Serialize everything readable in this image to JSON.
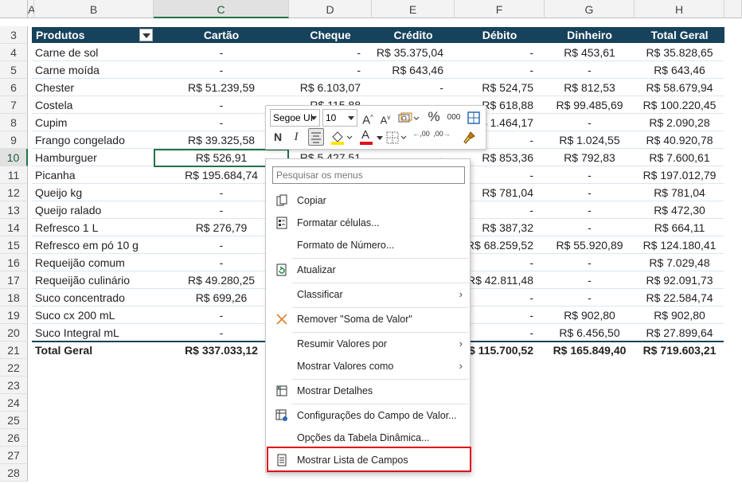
{
  "columns": [
    "A",
    "B",
    "C",
    "D",
    "E",
    "F",
    "G",
    "H"
  ],
  "row_numbers": [
    "3",
    "4",
    "5",
    "6",
    "7",
    "8",
    "9",
    "10",
    "11",
    "12",
    "13",
    "14",
    "15",
    "16",
    "17",
    "18",
    "19",
    "20",
    "21",
    "22",
    "23",
    "24",
    "25",
    "26",
    "27",
    "28"
  ],
  "pivot": {
    "headers": [
      "Produtos",
      "Cartão",
      "Cheque",
      "Crédito",
      "Débito",
      "Dinheiro",
      "Total Geral"
    ],
    "rows": [
      [
        "Carne de sol",
        "-",
        "-",
        "R$ 35.375,04",
        "-",
        "R$ 453,61",
        "R$ 35.828,65"
      ],
      [
        "Carne moída",
        "-",
        "-",
        "R$ 643,46",
        "-",
        "-",
        "R$ 643,46"
      ],
      [
        "Chester",
        "R$ 51.239,59",
        "R$ 6.103,07",
        "-",
        "R$ 524,75",
        "R$ 812,53",
        "R$ 58.679,94"
      ],
      [
        "Costela",
        "-",
        "R$ 115,88",
        "",
        "R$ 618,88",
        "R$ 99.485,69",
        "R$ 100.220,45"
      ],
      [
        "Cupim",
        "-",
        "",
        "",
        "R$ 1.464,17",
        "-",
        "R$ 2.090,28"
      ],
      [
        "Frango congelado",
        "R$ 39.325,58",
        "",
        "",
        "-",
        "R$ 1.024,55",
        "R$ 40.920,78"
      ],
      [
        "Hamburguer",
        "R$ 526,91",
        "R$ 5.427,51",
        "-",
        "R$ 853,36",
        "R$ 792,83",
        "R$ 7.600,61"
      ],
      [
        "Picanha",
        "R$ 195.684,74",
        "",
        "",
        "-",
        "-",
        "R$ 197.012,79"
      ],
      [
        "Queijo kg",
        "-",
        "",
        "",
        "R$ 781,04",
        "-",
        "R$ 781,04"
      ],
      [
        "Queijo ralado",
        "-",
        "",
        "",
        "-",
        "-",
        "R$ 472,30"
      ],
      [
        "Refresco 1 L",
        "R$ 276,79",
        "",
        "",
        "R$ 387,32",
        "-",
        "R$ 664,11"
      ],
      [
        "Refresco em pó 10 g",
        "-",
        "",
        "",
        "R$ 68.259,52",
        "R$ 55.920,89",
        "R$ 124.180,41"
      ],
      [
        "Requeijão comum",
        "-",
        "",
        "",
        "-",
        "-",
        "R$ 7.029,48"
      ],
      [
        "Requeijão culinário",
        "R$ 49.280,25",
        "",
        "",
        "R$ 42.811,48",
        "-",
        "R$ 92.091,73"
      ],
      [
        "Suco concentrado",
        "R$ 699,26",
        "",
        "",
        "-",
        "-",
        "R$ 22.584,74"
      ],
      [
        "Suco cx 200 mL",
        "-",
        "",
        "",
        "-",
        "R$ 902,80",
        "R$ 902,80"
      ],
      [
        "Suco Integral mL",
        "-",
        "",
        "",
        "-",
        "R$ 6.456,50",
        "R$ 27.899,64"
      ]
    ],
    "total": [
      "Total Geral",
      "R$ 337.033,12",
      "",
      "",
      "R$ 115.700,52",
      "R$ 165.849,40",
      "R$ 719.603,21"
    ]
  },
  "mini_toolbar": {
    "font_name": "Segoe UI",
    "font_size": "10",
    "grow_font": "A",
    "shrink_font": "A",
    "percent": "%",
    "thousands": "000",
    "bold": "N",
    "italic": "I",
    "font_color_letter": "A",
    "dec_increase": ",00",
    "dec_decrease": ",00"
  },
  "context_menu": {
    "search_placeholder": "Pesquisar os menus",
    "items": [
      {
        "label": "Copiar",
        "icon": "copy-icon"
      },
      {
        "label": "Formatar células...",
        "icon": "format-cells-icon"
      },
      {
        "label": "Formato de Número...",
        "icon": ""
      },
      {
        "label": "Atualizar",
        "icon": "refresh-icon"
      },
      {
        "label": "Classificar",
        "icon": "",
        "submenu": true
      },
      {
        "label": "Remover \"Soma de Valor\"",
        "icon": "remove-x-icon"
      },
      {
        "label": "Resumir Valores por",
        "icon": "",
        "submenu": true
      },
      {
        "label": "Mostrar Valores como",
        "icon": "",
        "submenu": true
      },
      {
        "label": "Mostrar Detalhes",
        "icon": "show-details-icon"
      },
      {
        "label": "Configurações do Campo de Valor...",
        "icon": "field-settings-icon"
      },
      {
        "label": "Opções da Tabela Dinâmica...",
        "icon": ""
      },
      {
        "label": "Mostrar Lista de Campos",
        "icon": "field-list-icon"
      }
    ],
    "submenu_arrow": "›"
  },
  "colors": {
    "header_fill": "#17425c",
    "selection": "#217346",
    "highlight_box": "#e0111b"
  }
}
